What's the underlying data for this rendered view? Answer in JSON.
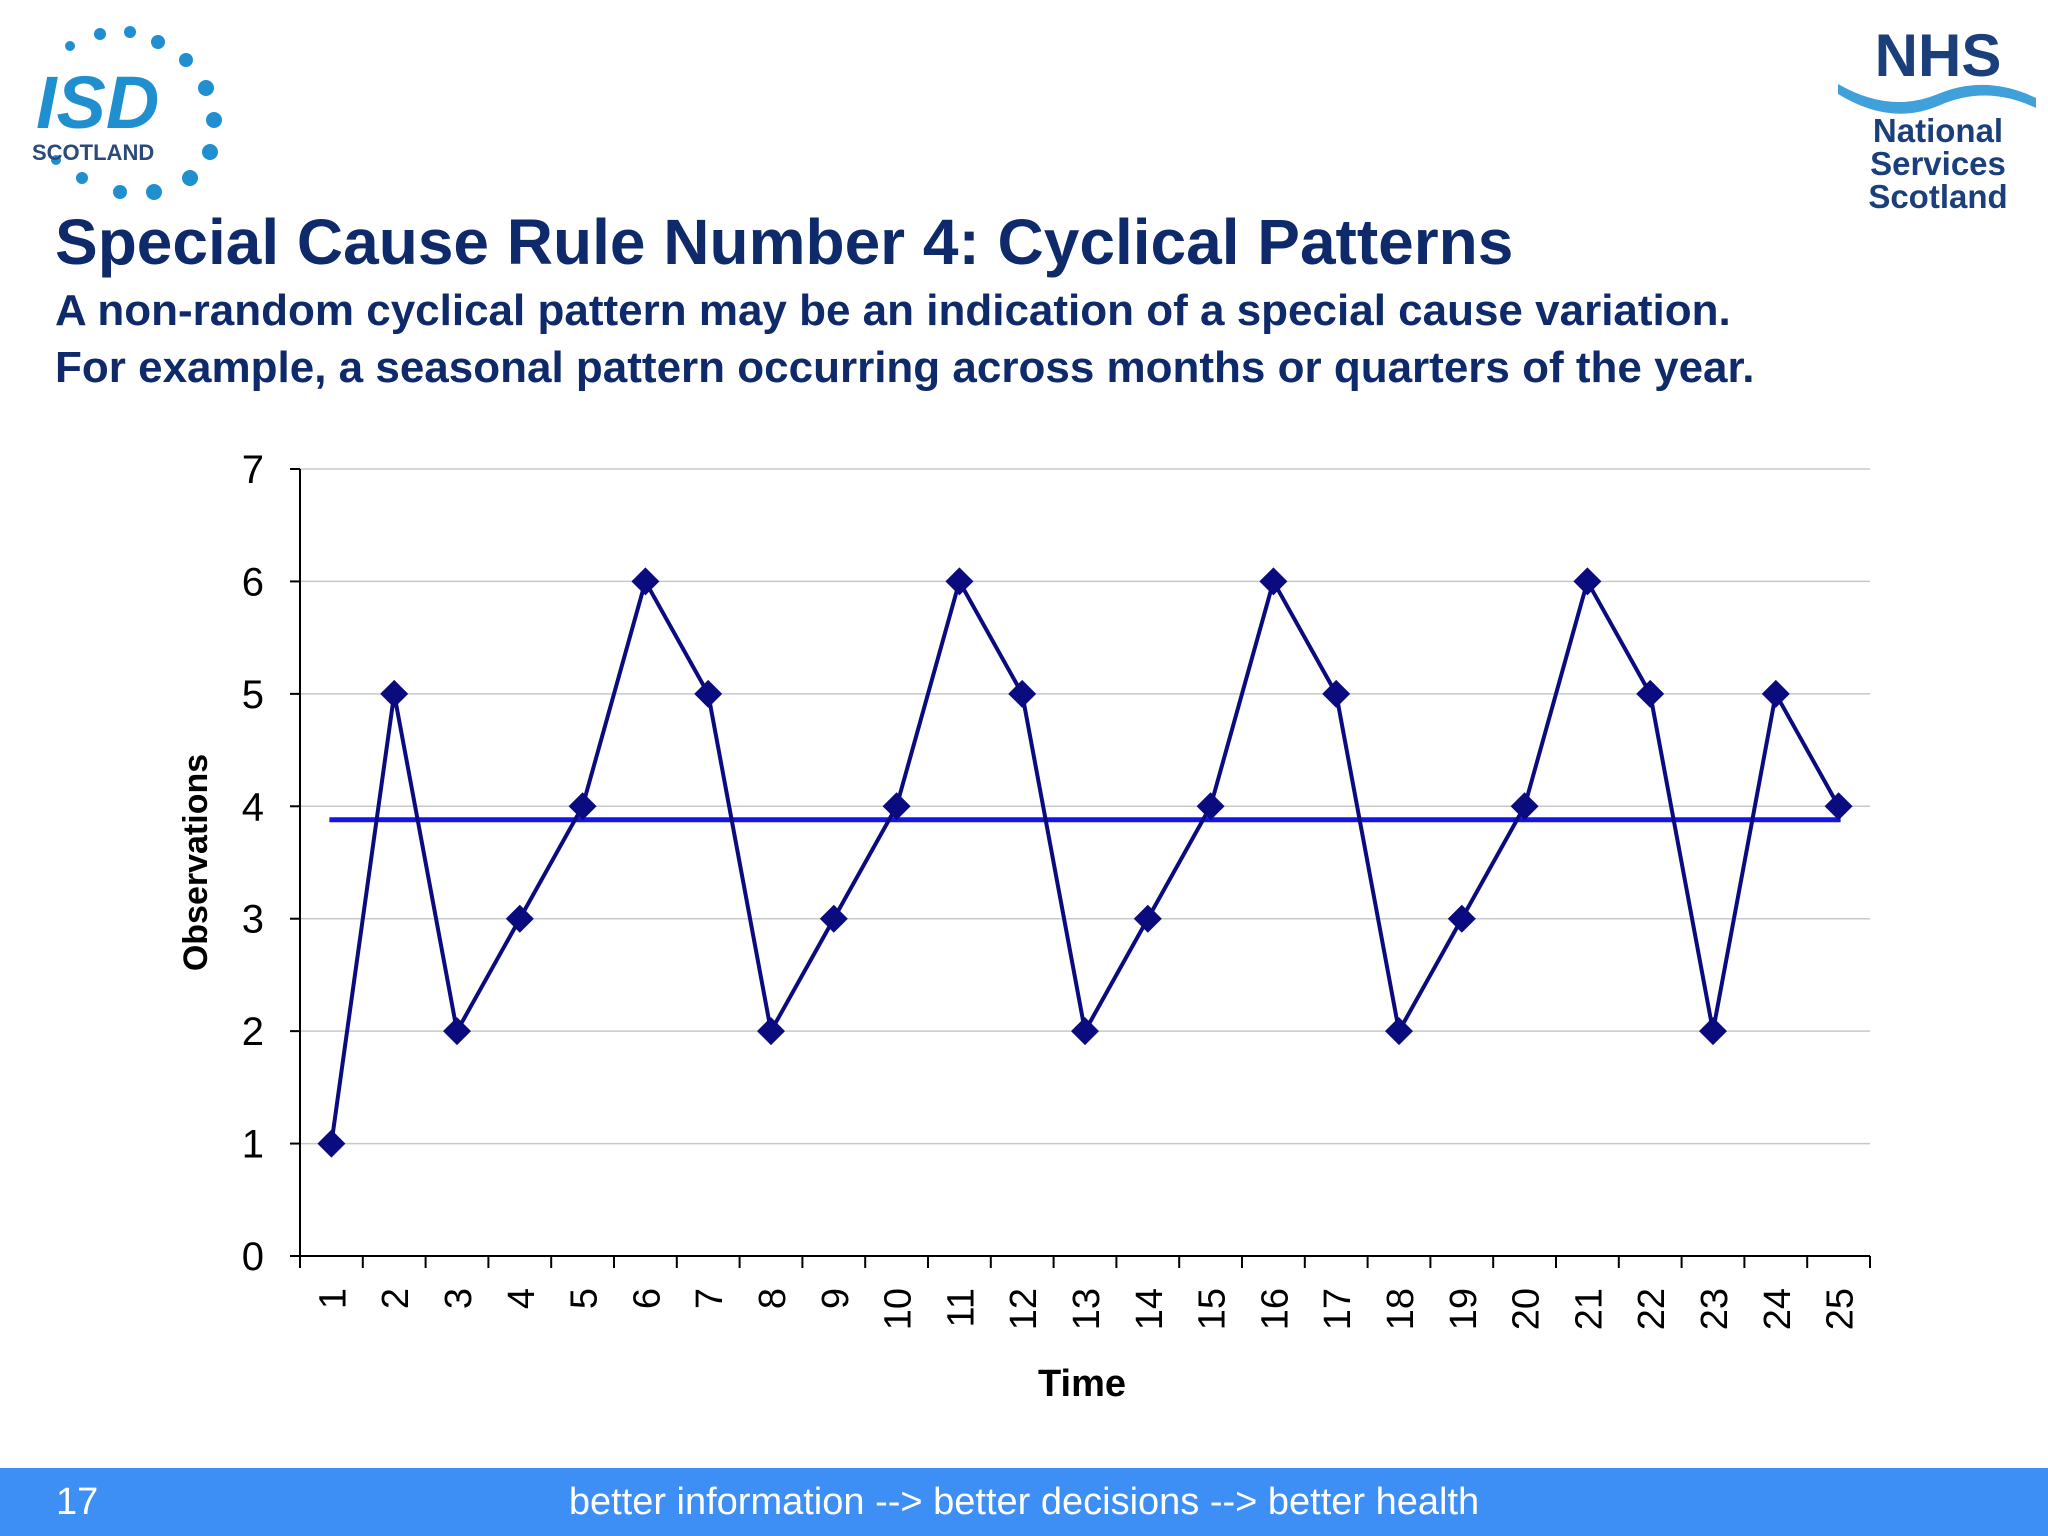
{
  "slide": {
    "title": "Special Cause Rule Number 4:  Cyclical Patterns",
    "subtitle_line1": "A non-random cyclical pattern may be an indication of a special cause variation.",
    "subtitle_line2": "For example, a seasonal pattern occurring across months or quarters of the year.",
    "page_number": "17",
    "footer_tagline": "better information --> better decisions --> better health"
  },
  "logos": {
    "isd": {
      "main": "ISD",
      "sub": "SCOTLAND"
    },
    "nhs": {
      "main": "NHS",
      "line1": "National",
      "line2": "Services",
      "line3": "Scotland"
    }
  },
  "colors": {
    "title": "#0e2a6b",
    "series": "#0b0b80",
    "center_line": "#1414e6",
    "footer": "#3d8ef5",
    "logo_blue": "#1f8fd0",
    "nhs_navy": "#1b3f7a"
  },
  "chart_data": {
    "type": "line",
    "xlabel": "Time",
    "ylabel": "Observations",
    "ylim": [
      0,
      7
    ],
    "yticks": [
      0,
      1,
      2,
      3,
      4,
      5,
      6,
      7
    ],
    "grid": true,
    "x": [
      1,
      2,
      3,
      4,
      5,
      6,
      7,
      8,
      9,
      10,
      11,
      12,
      13,
      14,
      15,
      16,
      17,
      18,
      19,
      20,
      21,
      22,
      23,
      24,
      25
    ],
    "series": [
      {
        "role": "observations",
        "values": [
          1,
          5,
          2,
          3,
          4,
          6,
          5,
          2,
          3,
          4,
          6,
          5,
          2,
          3,
          4,
          6,
          5,
          2,
          3,
          4,
          6,
          5,
          2,
          5,
          4
        ]
      },
      {
        "role": "mean",
        "values": [
          3.88,
          3.88,
          3.88,
          3.88,
          3.88,
          3.88,
          3.88,
          3.88,
          3.88,
          3.88,
          3.88,
          3.88,
          3.88,
          3.88,
          3.88,
          3.88,
          3.88,
          3.88,
          3.88,
          3.88,
          3.88,
          3.88,
          3.88,
          3.88,
          3.88
        ]
      }
    ]
  }
}
